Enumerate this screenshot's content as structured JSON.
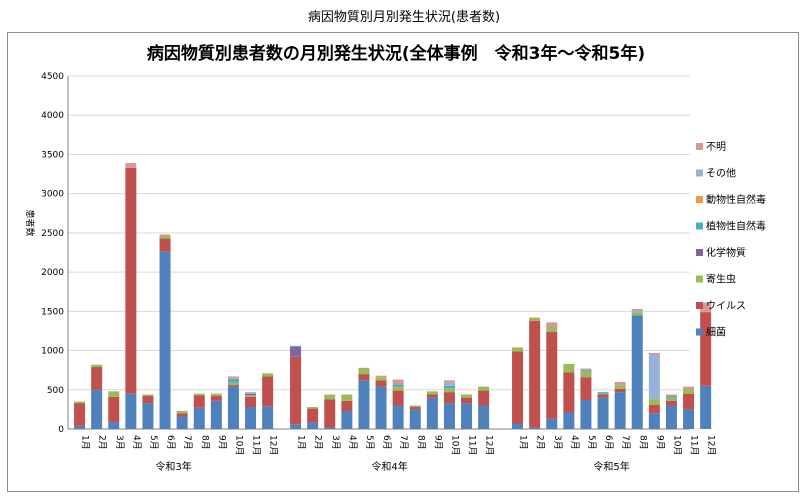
{
  "page_title": "病因物質別月別発生状況(患者数)",
  "colors": {
    "細菌": "#4f81bd",
    "ウイルス": "#c0504d",
    "寄生虫": "#9bbb59",
    "化学物質": "#8064a2",
    "植物性自然毒": "#4bacc6",
    "動物性自然毒": "#f79646",
    "その他": "#95b3d7",
    "不明": "#d99694"
  },
  "chart_data": {
    "type": "bar",
    "stacked": true,
    "title": "病因物質別患者数の月別発生状況(全体事例　令和3年〜令和5年)",
    "ylabel": "患者数",
    "ylim": [
      0,
      4500
    ],
    "yticks": [
      0,
      500,
      1000,
      1500,
      2000,
      2500,
      3000,
      3500,
      4000,
      4500
    ],
    "grid": true,
    "legend_position": "right",
    "groups": [
      {
        "label": "令和3年",
        "categories": [
          "1月",
          "2月",
          "3月",
          "4月",
          "5月",
          "6月",
          "7月",
          "8月",
          "9月",
          "10月",
          "11月",
          "12月"
        ]
      },
      {
        "label": "令和4年",
        "categories": [
          "1月",
          "2月",
          "3月",
          "4月",
          "5月",
          "6月",
          "7月",
          "8月",
          "9月",
          "10月",
          "11月",
          "12月"
        ]
      },
      {
        "label": "令和5年",
        "categories": [
          "1月",
          "2月",
          "3月",
          "4月",
          "5月",
          "6月",
          "7月",
          "8月",
          "9月",
          "10月",
          "11月",
          "12月"
        ]
      }
    ],
    "legend_order": [
      "不明",
      "その他",
      "動物性自然毒",
      "植物性自然毒",
      "化学物質",
      "寄生虫",
      "ウイルス",
      "細菌"
    ],
    "series": [
      {
        "name": "細菌",
        "values": [
          40,
          500,
          90,
          450,
          330,
          2260,
          160,
          270,
          360,
          540,
          280,
          290,
          60,
          80,
          20,
          230,
          620,
          540,
          300,
          250,
          400,
          330,
          330,
          300,
          70,
          20,
          130,
          210,
          370,
          400,
          470,
          1450,
          200,
          300,
          250,
          550
        ]
      },
      {
        "name": "ウイルス",
        "values": [
          290,
          290,
          320,
          2880,
          90,
          170,
          40,
          160,
          60,
          20,
          130,
          380,
          860,
          180,
          360,
          130,
          80,
          80,
          190,
          30,
          40,
          140,
          70,
          190,
          920,
          1360,
          1110,
          510,
          290,
          40,
          40,
          0,
          110,
          60,
          200,
          940
        ]
      },
      {
        "name": "寄生虫",
        "values": [
          20,
          30,
          70,
          0,
          20,
          30,
          30,
          20,
          30,
          30,
          20,
          40,
          0,
          20,
          60,
          80,
          80,
          40,
          50,
          20,
          40,
          50,
          40,
          50,
          50,
          40,
          60,
          110,
          70,
          10,
          50,
          40,
          70,
          40,
          60,
          0
        ]
      },
      {
        "name": "化学物質",
        "values": [
          0,
          0,
          0,
          0,
          0,
          0,
          0,
          0,
          0,
          0,
          20,
          0,
          130,
          0,
          0,
          0,
          0,
          0,
          0,
          0,
          0,
          0,
          0,
          0,
          0,
          0,
          0,
          0,
          0,
          0,
          0,
          0,
          0,
          0,
          0,
          0
        ]
      },
      {
        "name": "植物性自然毒",
        "values": [
          0,
          0,
          0,
          0,
          0,
          0,
          0,
          0,
          0,
          50,
          0,
          0,
          10,
          0,
          0,
          0,
          0,
          0,
          30,
          0,
          0,
          30,
          0,
          0,
          0,
          0,
          0,
          0,
          20,
          20,
          0,
          0,
          0,
          20,
          0,
          0
        ]
      },
      {
        "name": "動物性自然毒",
        "values": [
          0,
          0,
          0,
          0,
          0,
          0,
          0,
          0,
          0,
          0,
          0,
          0,
          0,
          0,
          0,
          0,
          0,
          0,
          0,
          0,
          0,
          0,
          0,
          0,
          0,
          0,
          0,
          0,
          0,
          0,
          0,
          0,
          0,
          0,
          0,
          0
        ]
      },
      {
        "name": "その他",
        "values": [
          0,
          0,
          0,
          0,
          0,
          0,
          0,
          0,
          0,
          0,
          20,
          0,
          0,
          0,
          0,
          0,
          0,
          0,
          0,
          0,
          0,
          40,
          0,
          0,
          0,
          0,
          0,
          0,
          0,
          0,
          0,
          20,
          570,
          0,
          0,
          0
        ]
      },
      {
        "name": "不明",
        "values": [
          0,
          0,
          0,
          60,
          0,
          20,
          0,
          0,
          0,
          30,
          0,
          0,
          0,
          0,
          0,
          0,
          0,
          20,
          60,
          0,
          0,
          30,
          0,
          0,
          0,
          0,
          60,
          0,
          20,
          0,
          40,
          20,
          20,
          20,
          30,
          120
        ]
      }
    ]
  }
}
